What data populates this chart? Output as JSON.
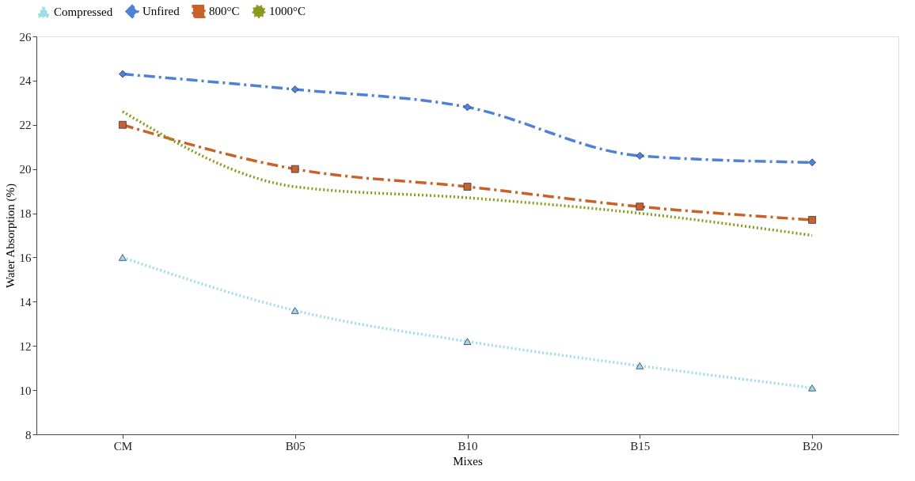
{
  "chart_data": {
    "type": "line",
    "xlabel": "Mixes",
    "ylabel": "Water Absorption (%)",
    "categories": [
      "CM",
      "B05",
      "B10",
      "B15",
      "B20"
    ],
    "series": [
      {
        "name": "Compressed",
        "color": "#9fdcea",
        "values": [
          16.0,
          13.6,
          12.2,
          11.1,
          10.1
        ],
        "marker": "triangle",
        "line_style": "dotted"
      },
      {
        "name": "Unfired",
        "color": "#4f81d6",
        "values": [
          24.3,
          23.6,
          22.8,
          20.6,
          20.3
        ],
        "marker": "diamond",
        "line_style": "dashed"
      },
      {
        "name": "800°C",
        "color": "#c8622a",
        "values": [
          22.0,
          20.0,
          19.2,
          18.3,
          17.7
        ],
        "marker": "square",
        "line_style": "dashed"
      },
      {
        "name": "1000°C",
        "color": "#8a9a1a",
        "values": [
          22.6,
          19.2,
          18.7,
          18.0,
          17.0
        ],
        "marker": "none",
        "line_style": "dotted"
      }
    ],
    "ylim": [
      8,
      26
    ],
    "yticks": [
      8,
      10,
      12,
      14,
      16,
      18,
      20,
      22,
      24,
      26
    ],
    "grid": false,
    "legend": "top"
  }
}
